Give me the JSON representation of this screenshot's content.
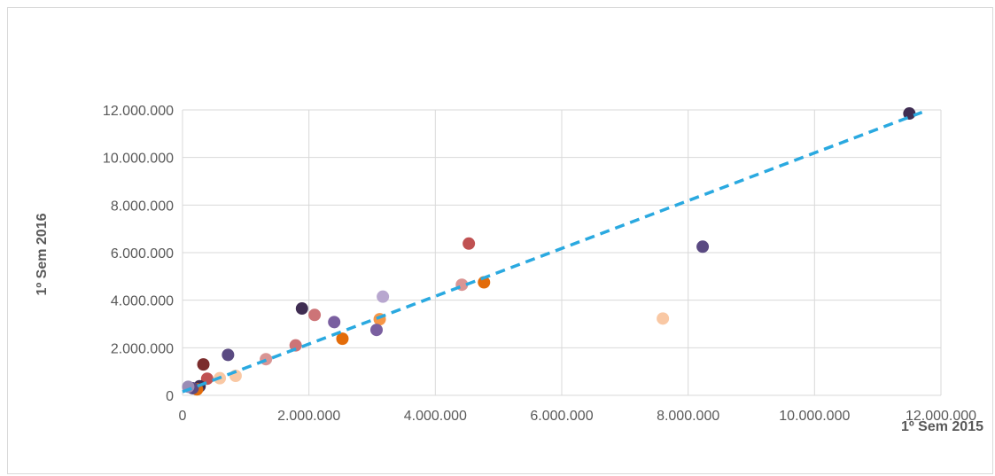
{
  "chart_data": {
    "type": "scatter",
    "title": "",
    "xlabel": "1º Sem 2015",
    "ylabel": "1º Sem 2016",
    "xlim": [
      0,
      12000000
    ],
    "ylim": [
      0,
      12000000
    ],
    "x_ticks": [
      0,
      2000000,
      4000000,
      6000000,
      8000000,
      10000000,
      12000000
    ],
    "y_ticks": [
      0,
      2000000,
      4000000,
      6000000,
      8000000,
      10000000,
      12000000
    ],
    "x_tick_labels": [
      "0",
      "2.000.000",
      "4.000.000",
      "6.000.000",
      "8.000.000",
      "10.000.000",
      "12.000.000"
    ],
    "y_tick_labels": [
      "0",
      "2.000.000",
      "4.000.000",
      "6.000.000",
      "8.000.000",
      "10.000.000",
      "12.000.000"
    ],
    "grid": true,
    "legend": "none",
    "trendline": {
      "style": "dashed",
      "color": "#2aa9e0",
      "x": [
        0,
        11700000
      ],
      "y": [
        150000,
        11900000
      ]
    },
    "points": [
      {
        "x": 11500000,
        "y": 11850000,
        "color": "#3f2d52"
      },
      {
        "x": 8230000,
        "y": 6250000,
        "color": "#5a4a82"
      },
      {
        "x": 7600000,
        "y": 3230000,
        "color": "#f9c8a4"
      },
      {
        "x": 4530000,
        "y": 6380000,
        "color": "#c05152"
      },
      {
        "x": 4770000,
        "y": 4750000,
        "color": "#e36c0a"
      },
      {
        "x": 4420000,
        "y": 4650000,
        "color": "#d99594"
      },
      {
        "x": 3170000,
        "y": 4150000,
        "color": "#b8a7cf"
      },
      {
        "x": 3120000,
        "y": 3200000,
        "color": "#f79646"
      },
      {
        "x": 3070000,
        "y": 2750000,
        "color": "#7a5fa0"
      },
      {
        "x": 2530000,
        "y": 2380000,
        "color": "#e36c0a"
      },
      {
        "x": 2400000,
        "y": 3080000,
        "color": "#7a5fa0"
      },
      {
        "x": 2090000,
        "y": 3380000,
        "color": "#cd7477"
      },
      {
        "x": 1890000,
        "y": 3650000,
        "color": "#3f2d52"
      },
      {
        "x": 1790000,
        "y": 2100000,
        "color": "#cd7477"
      },
      {
        "x": 1320000,
        "y": 1520000,
        "color": "#d99594"
      },
      {
        "x": 840000,
        "y": 820000,
        "color": "#f9c8a4"
      },
      {
        "x": 720000,
        "y": 1700000,
        "color": "#5a4a82"
      },
      {
        "x": 590000,
        "y": 720000,
        "color": "#f9c8a4"
      },
      {
        "x": 390000,
        "y": 700000,
        "color": "#c05152"
      },
      {
        "x": 330000,
        "y": 1300000,
        "color": "#7b2c2c"
      },
      {
        "x": 270000,
        "y": 380000,
        "color": "#3f2d52"
      },
      {
        "x": 230000,
        "y": 250000,
        "color": "#e36c0a"
      },
      {
        "x": 160000,
        "y": 300000,
        "color": "#5a4a82"
      },
      {
        "x": 90000,
        "y": 360000,
        "color": "#9a8cb5"
      }
    ]
  }
}
